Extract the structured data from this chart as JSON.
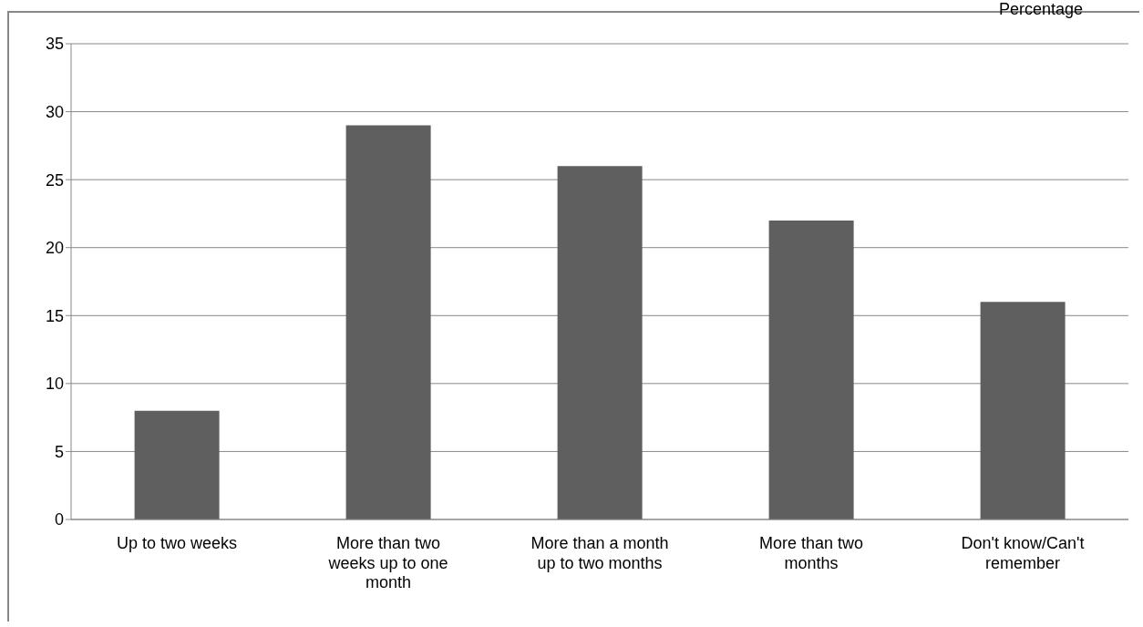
{
  "chart_data": {
    "type": "bar",
    "ylabel": "Percentage",
    "categories": [
      "Up to two weeks",
      "More than two weeks up to one month",
      "More than a month up to two months",
      "More than two months",
      "Don't know/Can't remember"
    ],
    "values": [
      8,
      29,
      26,
      22,
      16
    ],
    "color": "#5f5f5f",
    "ylim": [
      0,
      35
    ],
    "yticks": [
      0,
      5,
      10,
      15,
      20,
      25,
      30,
      35
    ],
    "grid": "y"
  }
}
